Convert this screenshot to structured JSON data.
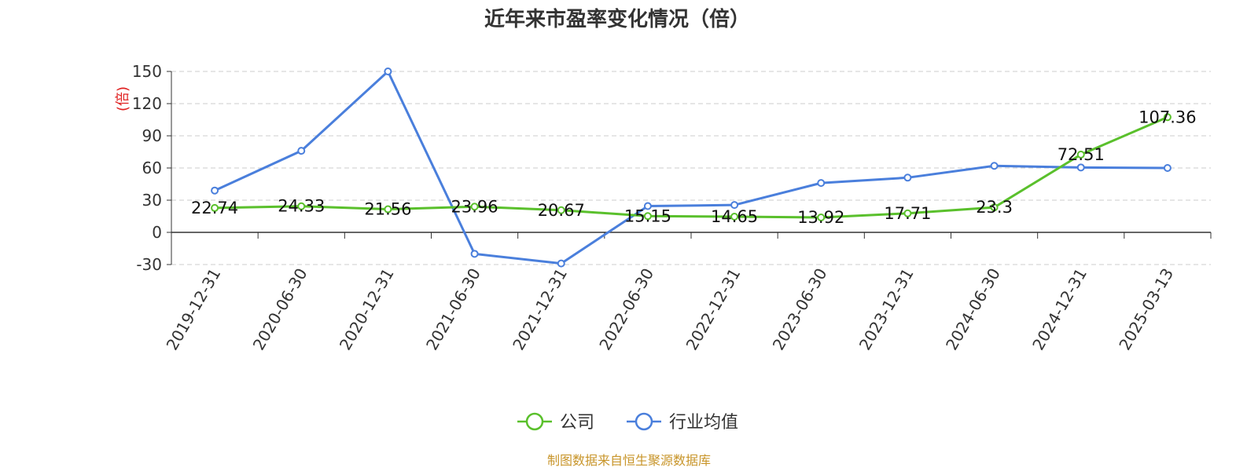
{
  "chart_data": {
    "type": "line",
    "title": "近年来市盈率变化情况（倍）",
    "ylabel": "(倍)",
    "ylim": [
      -30,
      150
    ],
    "yticks": [
      -30,
      0,
      30,
      60,
      90,
      120,
      150
    ],
    "ytick_labels": [
      "-30",
      "0",
      "30",
      "60",
      "90",
      "120",
      "150"
    ],
    "grid": true,
    "legend_position": "bottom-center",
    "categories": [
      "2019-12-31",
      "2020-06-30",
      "2020-12-31",
      "2021-06-30",
      "2021-12-31",
      "2022-06-30",
      "2022-12-31",
      "2023-06-30",
      "2023-12-31",
      "2024-06-30",
      "2024-12-31",
      "2025-03-13"
    ],
    "series": [
      {
        "name": "公司",
        "color": "#5ac02c",
        "values": [
          22.74,
          24.33,
          21.56,
          23.96,
          20.67,
          15.15,
          14.65,
          13.92,
          17.71,
          23.3,
          72.51,
          107.36
        ],
        "labels": [
          "22.74",
          "24.33",
          "21.56",
          "23.96",
          "20.67",
          "15.15",
          "14.65",
          "13.92",
          "17.71",
          "23.3",
          "72.51",
          "107.36"
        ]
      },
      {
        "name": "行业均值",
        "color": "#4a7fdc",
        "values": [
          39,
          76,
          150,
          -20,
          -29,
          24.5,
          25.5,
          46,
          51,
          62,
          60.5,
          60
        ]
      }
    ],
    "source": "制图数据来自恒生聚源数据库"
  },
  "colors": {
    "unit_label": "#e02020",
    "source_text": "#c8952a",
    "grid": "#cccccc",
    "axis": "#333333"
  }
}
